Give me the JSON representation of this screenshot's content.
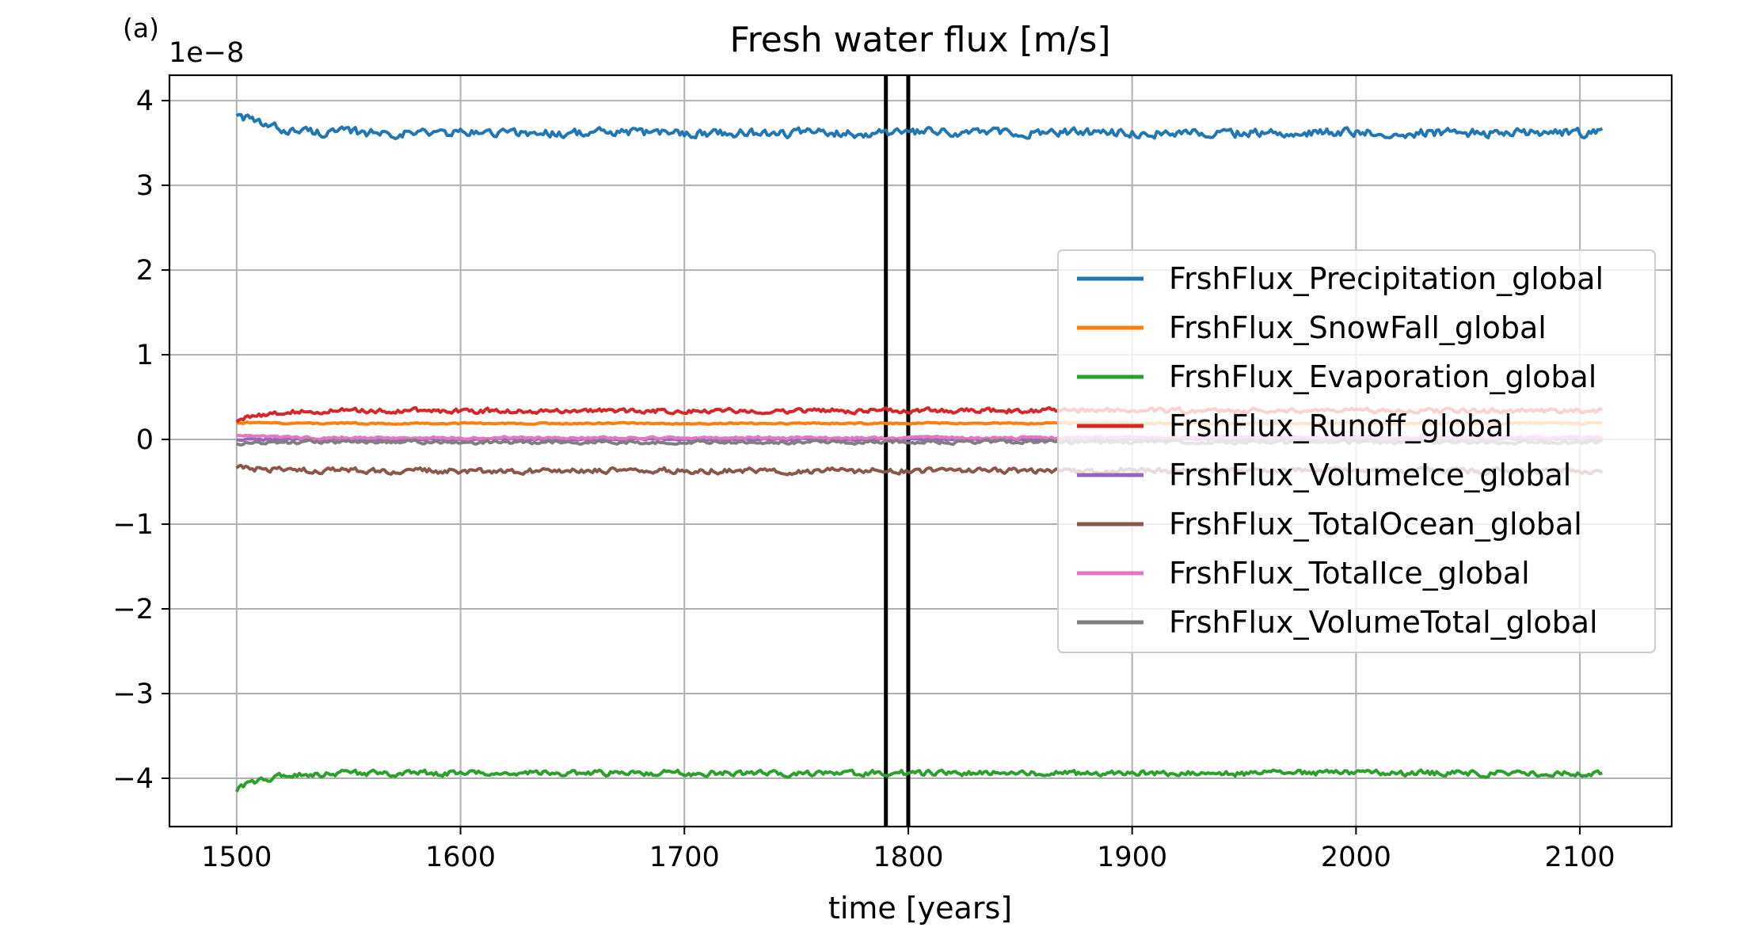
{
  "panel_label": "(a)",
  "chart_data": {
    "type": "line",
    "title": "Fresh water flux [m/s]",
    "xlabel": "time [years]",
    "ylabel": "",
    "y_offset_text": "1e−8",
    "xlim": [
      1470,
      2141
    ],
    "ylim": [
      -4.57,
      4.3
    ],
    "xticks": [
      1500,
      1600,
      1700,
      1800,
      1900,
      2000,
      2100
    ],
    "xtick_labels": [
      "1500",
      "1600",
      "1700",
      "1800",
      "1900",
      "2000",
      "2100"
    ],
    "yticks": [
      4,
      3,
      2,
      1,
      0,
      -1,
      -2,
      -3,
      -4
    ],
    "ytick_labels": [
      "4",
      "3",
      "2",
      "1",
      "0",
      "−1",
      "−2",
      "−3",
      "−4"
    ],
    "grid": true,
    "legend_position": "center-right",
    "vertical_lines": [
      1790,
      1800
    ],
    "vertical_line_color": "#000000",
    "series": [
      {
        "name": "FrshFlux_Precipitation_global",
        "color": "#1f77b4",
        "start": 3.86,
        "level": 3.62,
        "noise": 0.045
      },
      {
        "name": "FrshFlux_SnowFall_global",
        "color": "#ff7f0e",
        "start": 0.2,
        "level": 0.19,
        "noise": 0.008
      },
      {
        "name": "FrshFlux_Evaporation_global",
        "color": "#2ca02c",
        "start": -4.14,
        "level": -3.94,
        "noise": 0.03
      },
      {
        "name": "FrshFlux_Runoff_global",
        "color": "#d62728",
        "start": 0.22,
        "level": 0.34,
        "noise": 0.025
      },
      {
        "name": "FrshFlux_VolumeIce_global",
        "color": "#9467bd",
        "start": 0.0,
        "level": 0.0,
        "noise": 0.01
      },
      {
        "name": "FrshFlux_TotalOcean_global",
        "color": "#8c564b",
        "start": -0.33,
        "level": -0.37,
        "noise": 0.03
      },
      {
        "name": "FrshFlux_TotalIce_global",
        "color": "#e377c2",
        "start": 0.05,
        "level": 0.02,
        "noise": 0.012
      },
      {
        "name": "FrshFlux_VolumeTotal_global",
        "color": "#7f7f7f",
        "start": -0.05,
        "level": -0.03,
        "noise": 0.018
      }
    ],
    "x_range": [
      1500,
      2110
    ],
    "x_step": 1
  }
}
